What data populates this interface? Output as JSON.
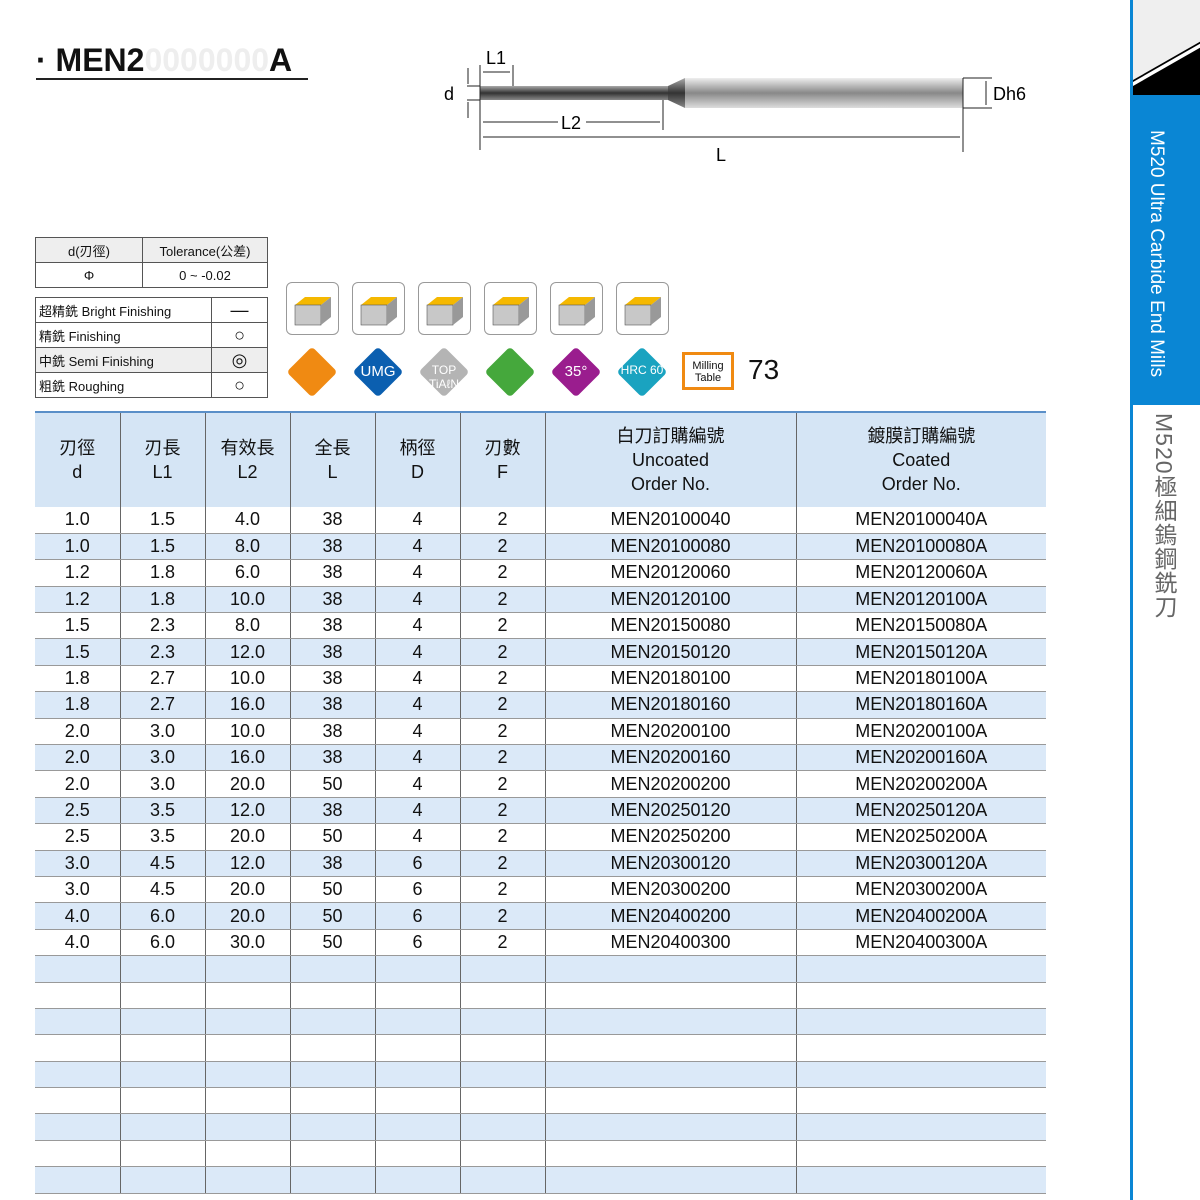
{
  "title": {
    "bullet": "·",
    "prefix": "MEN2",
    "ghost": "0000000",
    "suffix": "A"
  },
  "diagram": {
    "labels": {
      "l1": "L1",
      "d": "d",
      "l2": "L2",
      "l": "L",
      "dh6": "Dh6"
    }
  },
  "tolerance": {
    "headers": [
      "d(刃徑)",
      "Tolerance(公差)"
    ],
    "row": [
      "Φ",
      "0 ~ -0.02"
    ]
  },
  "machining": [
    {
      "label": "超精銑 Bright Finishing",
      "mark": "—"
    },
    {
      "label": "精銑 Finishing",
      "mark": "○"
    },
    {
      "label": "中銑 Semi Finishing",
      "mark": "◎"
    },
    {
      "label": "粗銑 Roughing",
      "mark": "○"
    }
  ],
  "applications": [
    "face-milling-icon",
    "slotting-icon",
    "side-milling-icon",
    "helical-milling-icon",
    "plunging-icon",
    "ramping-icon"
  ],
  "features": [
    {
      "icon": "flute-cross-section-icon",
      "text": "",
      "color": "#f08a12"
    },
    {
      "icon": "umg-icon",
      "text": "UMG",
      "color": "#0b5fb0"
    },
    {
      "icon": "coating-icon",
      "text": "TOP TiAℓN",
      "color": "#b4b4b4"
    },
    {
      "icon": "corner-icon",
      "text": "",
      "color": "#45a83c"
    },
    {
      "icon": "helix-angle-icon",
      "text": "35°",
      "color": "#9a1d8e"
    },
    {
      "icon": "hardness-icon",
      "text": "HRC 60",
      "color": "#1aa3c0"
    }
  ],
  "milling_table": {
    "text": "Milling Table",
    "page": "73"
  },
  "table": {
    "headers": [
      [
        "刃徑",
        "d"
      ],
      [
        "刃長",
        "L1"
      ],
      [
        "有效長",
        "L2"
      ],
      [
        "全長",
        "L"
      ],
      [
        "柄徑",
        "D"
      ],
      [
        "刃數",
        "F"
      ],
      [
        "白刀訂購編號",
        "Uncoated",
        "Order No."
      ],
      [
        "鍍膜訂購編號",
        "Coated",
        "Order No."
      ]
    ],
    "rows": [
      [
        "1.0",
        "1.5",
        "4.0",
        "38",
        "4",
        "2",
        "MEN20100040",
        "MEN20100040A"
      ],
      [
        "1.0",
        "1.5",
        "8.0",
        "38",
        "4",
        "2",
        "MEN20100080",
        "MEN20100080A"
      ],
      [
        "1.2",
        "1.8",
        "6.0",
        "38",
        "4",
        "2",
        "MEN20120060",
        "MEN20120060A"
      ],
      [
        "1.2",
        "1.8",
        "10.0",
        "38",
        "4",
        "2",
        "MEN20120100",
        "MEN20120100A"
      ],
      [
        "1.5",
        "2.3",
        "8.0",
        "38",
        "4",
        "2",
        "MEN20150080",
        "MEN20150080A"
      ],
      [
        "1.5",
        "2.3",
        "12.0",
        "38",
        "4",
        "2",
        "MEN20150120",
        "MEN20150120A"
      ],
      [
        "1.8",
        "2.7",
        "10.0",
        "38",
        "4",
        "2",
        "MEN20180100",
        "MEN20180100A"
      ],
      [
        "1.8",
        "2.7",
        "16.0",
        "38",
        "4",
        "2",
        "MEN20180160",
        "MEN20180160A"
      ],
      [
        "2.0",
        "3.0",
        "10.0",
        "38",
        "4",
        "2",
        "MEN20200100",
        "MEN20200100A"
      ],
      [
        "2.0",
        "3.0",
        "16.0",
        "38",
        "4",
        "2",
        "MEN20200160",
        "MEN20200160A"
      ],
      [
        "2.0",
        "3.0",
        "20.0",
        "50",
        "4",
        "2",
        "MEN20200200",
        "MEN20200200A"
      ],
      [
        "2.5",
        "3.5",
        "12.0",
        "38",
        "4",
        "2",
        "MEN20250120",
        "MEN20250120A"
      ],
      [
        "2.5",
        "3.5",
        "20.0",
        "50",
        "4",
        "2",
        "MEN20250200",
        "MEN20250200A"
      ],
      [
        "3.0",
        "4.5",
        "12.0",
        "38",
        "6",
        "2",
        "MEN20300120",
        "MEN20300120A"
      ],
      [
        "3.0",
        "4.5",
        "20.0",
        "50",
        "6",
        "2",
        "MEN20300200",
        "MEN20300200A"
      ],
      [
        "4.0",
        "6.0",
        "20.0",
        "50",
        "6",
        "2",
        "MEN20400200",
        "MEN20400200A"
      ],
      [
        "4.0",
        "6.0",
        "30.0",
        "50",
        "6",
        "2",
        "MEN20400300",
        "MEN20400300A"
      ]
    ]
  },
  "sidebar": {
    "english": "M520 Ultra Carbide End Mills",
    "chinese": "M520極細鎢鋼銑刀",
    "accent": "#0a86d4"
  }
}
